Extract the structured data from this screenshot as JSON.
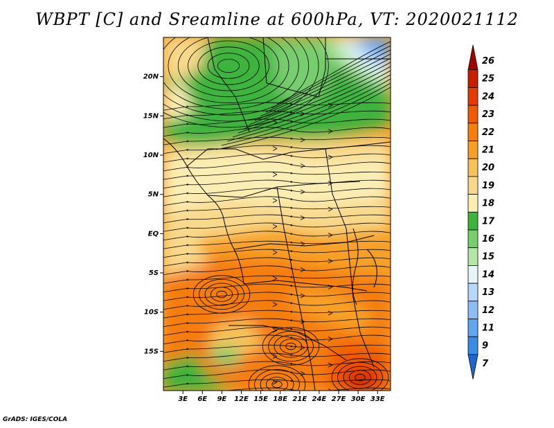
{
  "title": "WBPT [C] and Sreamline at 600hPa, VT: 2020021112",
  "credit": "GrADS: IGES/COLA",
  "map": {
    "lon_range": [
      0,
      35
    ],
    "lat_range": [
      -20,
      25
    ],
    "lat_ticks": [
      {
        "value": 20,
        "label": "20N"
      },
      {
        "value": 15,
        "label": "15N"
      },
      {
        "value": 10,
        "label": "10N"
      },
      {
        "value": 5,
        "label": "5N"
      },
      {
        "value": 0,
        "label": "EQ"
      },
      {
        "value": -5,
        "label": "5S"
      },
      {
        "value": -10,
        "label": "10S"
      },
      {
        "value": -15,
        "label": "15S"
      }
    ],
    "lon_ticks": [
      {
        "value": 3,
        "label": "3E"
      },
      {
        "value": 6,
        "label": "6E"
      },
      {
        "value": 9,
        "label": "9E"
      },
      {
        "value": 12,
        "label": "12E"
      },
      {
        "value": 15,
        "label": "15E"
      },
      {
        "value": 18,
        "label": "18E"
      },
      {
        "value": 21,
        "label": "21E"
      },
      {
        "value": 24,
        "label": "24E"
      },
      {
        "value": 27,
        "label": "27E"
      },
      {
        "value": 30,
        "label": "30E"
      },
      {
        "value": 33,
        "label": "33E"
      }
    ]
  },
  "colorbar": {
    "labels": [
      "26",
      "25",
      "24",
      "23",
      "22",
      "21",
      "20",
      "19",
      "18",
      "17",
      "16",
      "15",
      "14",
      "13",
      "12",
      "11",
      "9",
      "7"
    ],
    "colors": [
      "#a50000",
      "#c81e00",
      "#e63c00",
      "#f05a00",
      "#f57d0a",
      "#f7a028",
      "#f5c25a",
      "#f8d98c",
      "#fbeeb4",
      "#3cb43c",
      "#78cd6e",
      "#b4e6a5",
      "#e6f5f5",
      "#b4d7fa",
      "#8cbef5",
      "#64a5f0",
      "#3c8ce6",
      "#1e64d2"
    ]
  },
  "chart_data": {
    "type": "heatmap",
    "title": "WBPT [C] and Sreamline at 600hPa, VT: 2020021112",
    "variable": "wet-bulb potential temperature (C) with streamlines",
    "level": "600hPa",
    "valid_time": "2020021112",
    "x_range_deg_east": [
      0,
      35
    ],
    "y_range_deg_north": [
      -20,
      25
    ],
    "color_levels": [
      7,
      9,
      11,
      12,
      13,
      14,
      15,
      16,
      17,
      18,
      19,
      20,
      21,
      22,
      23,
      24,
      25,
      26
    ],
    "regions": [
      {
        "area": "northern band 10N-25N, west and center",
        "wbpt_range": [
          16,
          18
        ]
      },
      {
        "area": "north-east corner near 20N-25N, 28E-35E",
        "wbpt_range": [
          12,
          15
        ]
      },
      {
        "area": "equatorial belt 10N-5S",
        "wbpt_range": [
          18,
          21
        ]
      },
      {
        "area": "southern interior 5S-20S",
        "wbpt_range": [
          20,
          22
        ]
      },
      {
        "area": "south-east maximum near 18S-20S, 30E",
        "wbpt_range": [
          23,
          26
        ]
      },
      {
        "area": "south-west coast near 15S-20S, 0E-5E",
        "wbpt_range": [
          17,
          18
        ]
      }
    ]
  }
}
